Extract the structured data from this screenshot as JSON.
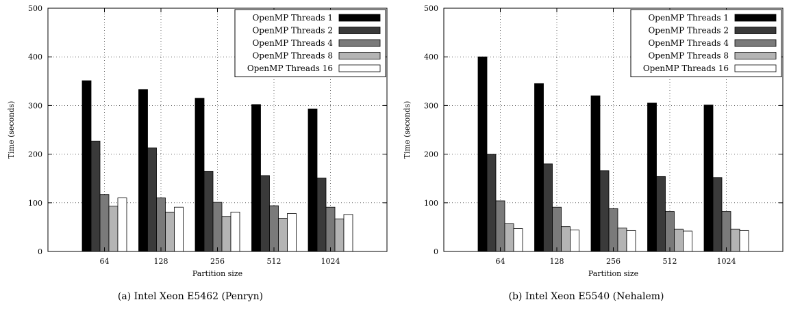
{
  "colors": [
    "#000000",
    "#3a3a3a",
    "#7a7a7a",
    "#b4b4b4",
    "#ffffff"
  ],
  "chart_data": [
    {
      "type": "bar",
      "categories": [
        "64",
        "128",
        "256",
        "512",
        "1024"
      ],
      "series": [
        {
          "name": "OpenMP Threads 1",
          "values": [
            351,
            333,
            315,
            302,
            293
          ]
        },
        {
          "name": "OpenMP Threads 2",
          "values": [
            227,
            213,
            165,
            156,
            151
          ]
        },
        {
          "name": "OpenMP Threads 4",
          "values": [
            117,
            110,
            101,
            94,
            91
          ]
        },
        {
          "name": "OpenMP Threads 8",
          "values": [
            93,
            81,
            72,
            68,
            67
          ]
        },
        {
          "name": "OpenMP Threads 16",
          "values": [
            110,
            91,
            81,
            78,
            76
          ]
        }
      ],
      "xlabel": "Partition size",
      "ylabel": "Time (seconds)",
      "ylim": [
        0,
        500
      ],
      "yticks": [
        0,
        100,
        200,
        300,
        400,
        500
      ],
      "grid": true,
      "legend_position": "top-right",
      "caption": "(a)  Intel Xeon E5462 (Penryn)"
    },
    {
      "type": "bar",
      "categories": [
        "64",
        "128",
        "256",
        "512",
        "1024"
      ],
      "series": [
        {
          "name": "OpenMP Threads 1",
          "values": [
            400,
            345,
            320,
            305,
            301
          ]
        },
        {
          "name": "OpenMP Threads 2",
          "values": [
            200,
            180,
            166,
            154,
            152
          ]
        },
        {
          "name": "OpenMP Threads 4",
          "values": [
            104,
            91,
            88,
            82,
            82
          ]
        },
        {
          "name": "OpenMP Threads 8",
          "values": [
            57,
            51,
            48,
            46,
            46
          ]
        },
        {
          "name": "OpenMP Threads 16",
          "values": [
            47,
            44,
            43,
            42,
            43
          ]
        }
      ],
      "xlabel": "Partition size",
      "ylabel": "Time (seconds)",
      "ylim": [
        0,
        500
      ],
      "yticks": [
        0,
        100,
        200,
        300,
        400,
        500
      ],
      "grid": true,
      "legend_position": "top-right",
      "caption": "(b)  Intel Xeon E5540 (Nehalem)"
    }
  ]
}
